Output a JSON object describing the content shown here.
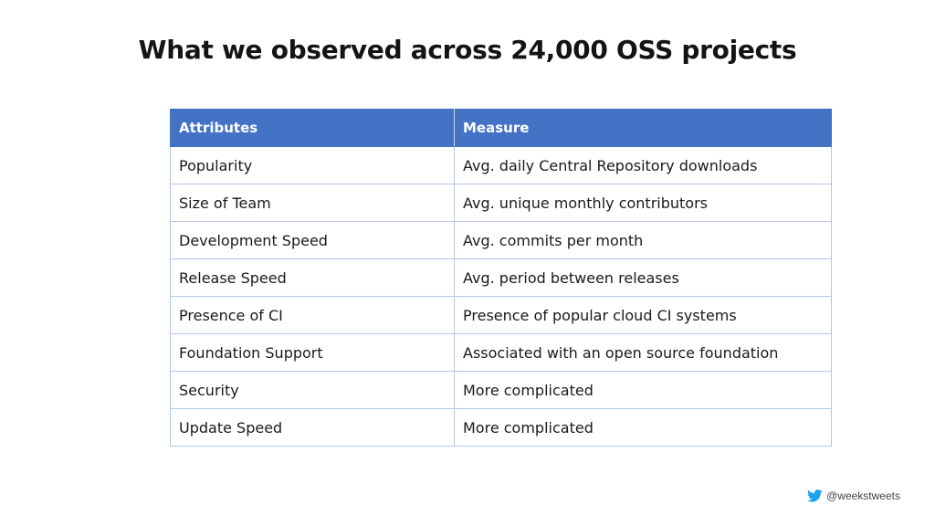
{
  "title": "What we observed across 24,000 OSS projects",
  "table": {
    "headers": [
      "Attributes",
      "Measure"
    ],
    "rows": [
      [
        "Popularity",
        "Avg. daily Central Repository downloads"
      ],
      [
        "Size of Team",
        "Avg. unique monthly contributors"
      ],
      [
        "Development Speed",
        "Avg. commits per month"
      ],
      [
        "Release Speed",
        "Avg. period between releases"
      ],
      [
        "Presence of CI",
        "Presence of popular cloud CI systems"
      ],
      [
        "Foundation Support",
        "Associated with an open source foundation"
      ],
      [
        "Security",
        "More complicated"
      ],
      [
        "Update Speed",
        "More complicated"
      ]
    ]
  },
  "footer": {
    "icon": "twitter-bird-icon",
    "handle": "@weekstweets"
  },
  "colors": {
    "header_bg": "#4472c4",
    "border": "#b4c6e7",
    "twitter": "#1da1f2"
  }
}
